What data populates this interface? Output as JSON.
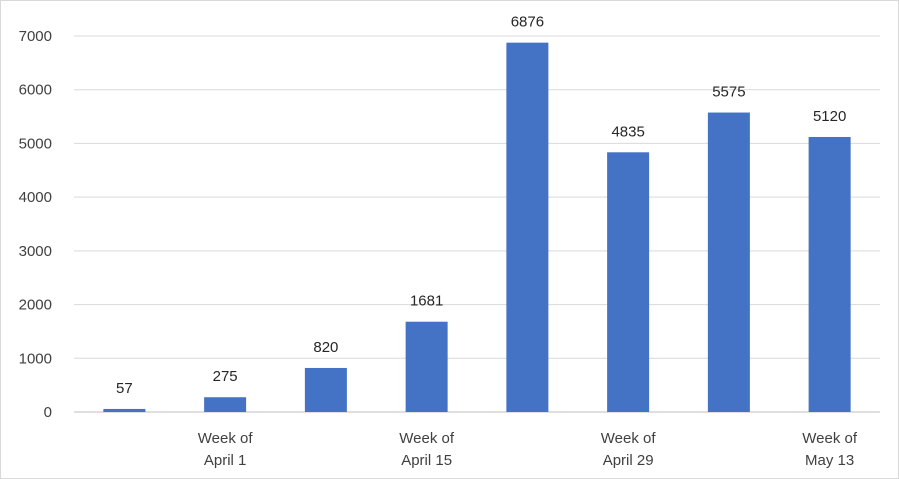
{
  "colors": {
    "bar": "#4472c4",
    "grid": "#d9d9d9",
    "text": "#404040",
    "background": "#ffffff"
  },
  "chart_data": {
    "type": "bar",
    "title": "",
    "xlabel": "",
    "ylabel": "",
    "ylim": [
      0,
      7000
    ],
    "yticks": [
      0,
      1000,
      2000,
      3000,
      4000,
      5000,
      6000,
      7000
    ],
    "grid": true,
    "legend": "none",
    "categories": [
      "",
      "Week of April 1",
      "",
      "Week of April 15",
      "",
      "Week of April 29",
      "",
      "Week of May 13"
    ],
    "category_lines": [
      [],
      [
        "Week of",
        "April 1"
      ],
      [],
      [
        "Week of",
        "April 15"
      ],
      [],
      [
        "Week of",
        "April 29"
      ],
      [],
      [
        "Week of",
        "May 13"
      ]
    ],
    "values": [
      57,
      275,
      820,
      1681,
      6876,
      4835,
      5575,
      5120
    ],
    "data_labels": [
      "57",
      "275",
      "820",
      "1681",
      "6876",
      "4835",
      "5575",
      "5120"
    ]
  }
}
